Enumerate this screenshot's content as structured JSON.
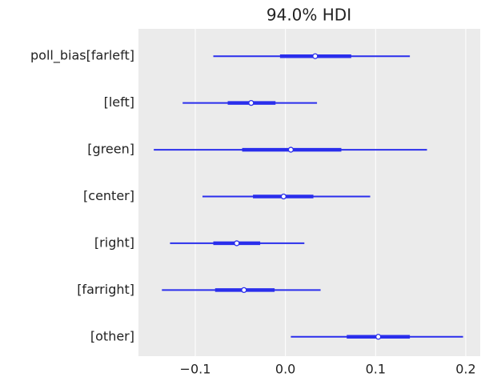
{
  "chart_data": {
    "type": "forest",
    "title": "94.0% HDI",
    "categories": [
      "poll_bias[farleft]",
      "[left]",
      "[green]",
      "[center]",
      "[right]",
      "[farright]",
      "[other]"
    ],
    "median": [
      0.033,
      -0.038,
      0.006,
      -0.002,
      -0.054,
      -0.046,
      0.103
    ],
    "hdi": [
      [
        -0.08,
        0.138
      ],
      [
        -0.114,
        0.035
      ],
      [
        -0.146,
        0.157
      ],
      [
        -0.092,
        0.094
      ],
      [
        -0.128,
        0.021
      ],
      [
        -0.137,
        0.039
      ],
      [
        0.006,
        0.197
      ]
    ],
    "iqr": [
      [
        -0.006,
        0.073
      ],
      [
        -0.064,
        -0.011
      ],
      [
        -0.048,
        0.062
      ],
      [
        -0.036,
        0.031
      ],
      [
        -0.08,
        -0.028
      ],
      [
        -0.078,
        -0.012
      ],
      [
        0.068,
        0.138
      ]
    ],
    "color": "#2a2eec",
    "xlim": [
      -0.163,
      0.216
    ],
    "xticks": [
      {
        "value": -0.1,
        "label": "−0.1"
      },
      {
        "value": 0.0,
        "label": "0.0"
      },
      0.1,
      0.2
    ],
    "grid": true
  }
}
